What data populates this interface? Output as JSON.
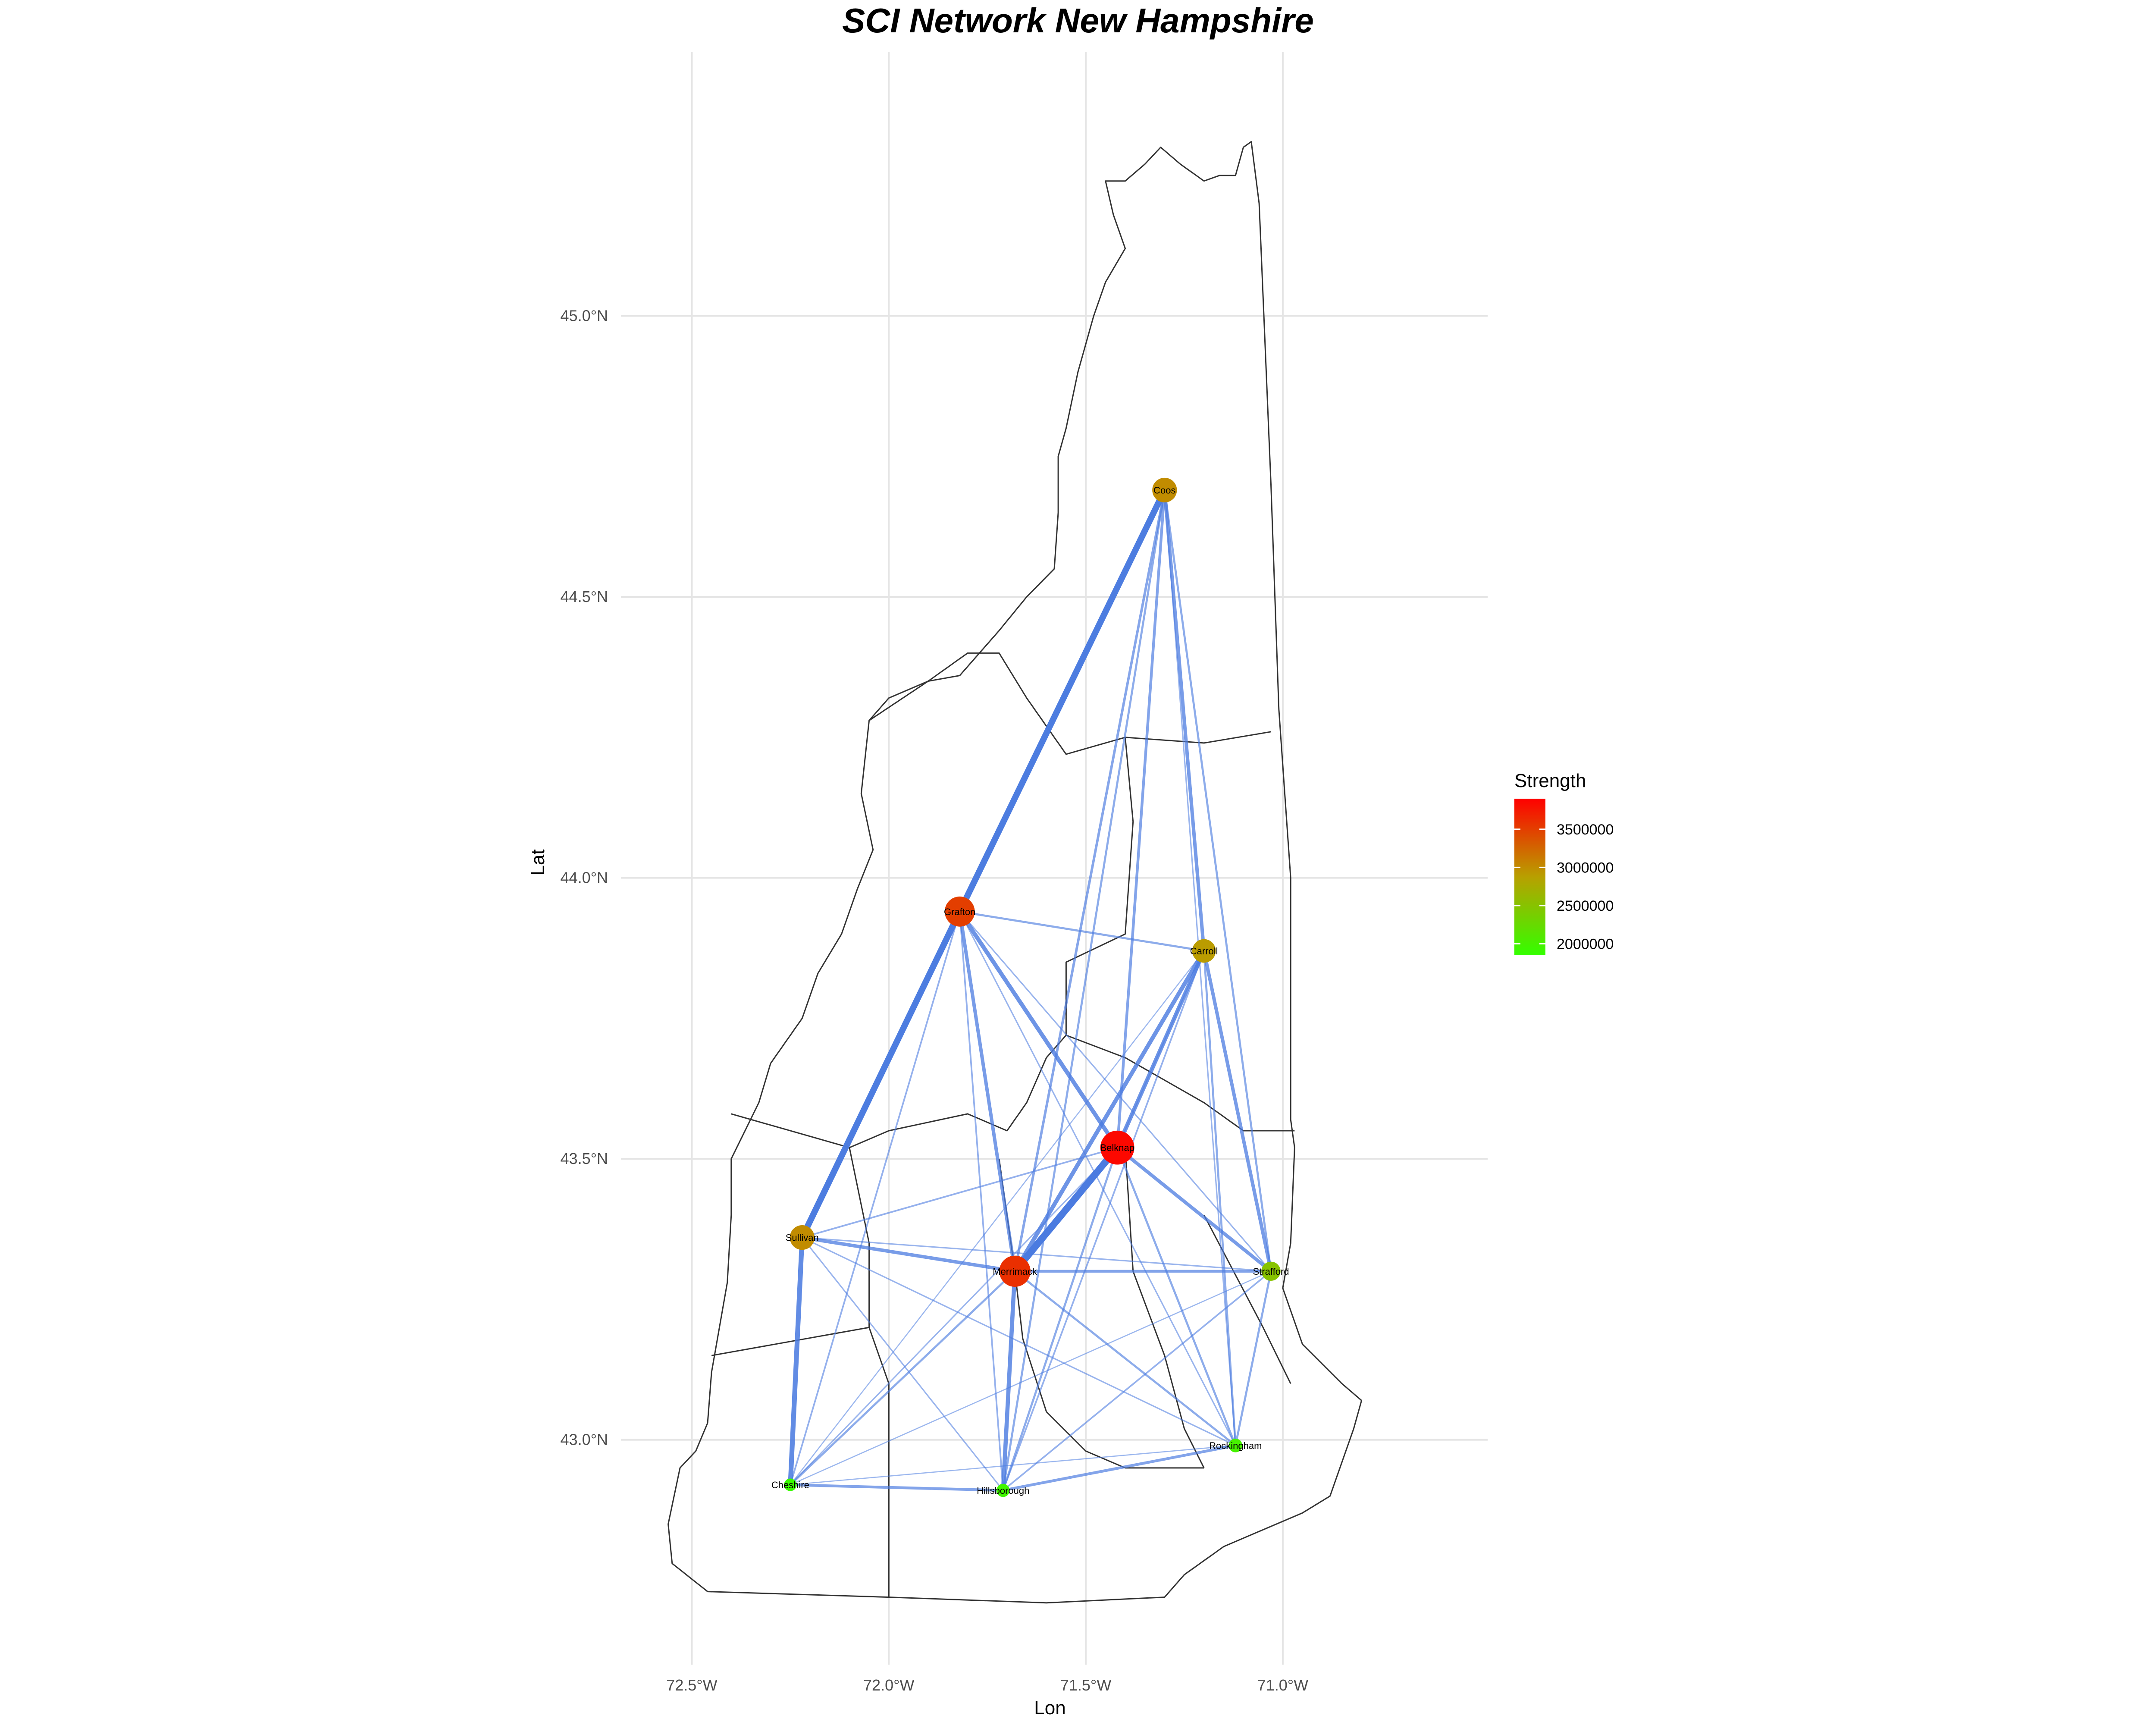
{
  "chart_data": {
    "type": "network-map",
    "title": "SCI Network New Hampshire",
    "xlabel": "Lon",
    "ylabel": "Lat",
    "xlim": [
      -72.68,
      -70.48
    ],
    "ylim": [
      42.6,
      45.47
    ],
    "x_ticks": [
      {
        "value": -72.5,
        "label": "72.5°W"
      },
      {
        "value": -72.0,
        "label": "72.0°W"
      },
      {
        "value": -71.5,
        "label": "71.5°W"
      },
      {
        "value": -71.0,
        "label": "71.0°W"
      }
    ],
    "y_ticks": [
      {
        "value": 43.0,
        "label": "43.0°N"
      },
      {
        "value": 43.5,
        "label": "43.5°N"
      },
      {
        "value": 44.0,
        "label": "44.0°N"
      },
      {
        "value": 44.5,
        "label": "44.5°N"
      },
      {
        "value": 45.0,
        "label": "45.0°N"
      }
    ],
    "grid": true,
    "legend": {
      "title": "Strength",
      "placement": "right",
      "min": 1850000,
      "max": 3900000,
      "colors": {
        "low": "#33ff00",
        "mid": "#b8a000",
        "high": "#ff0000"
      },
      "ticks": [
        {
          "value": 2000000,
          "label": "2000000"
        },
        {
          "value": 2500000,
          "label": "2500000"
        },
        {
          "value": 3000000,
          "label": "3000000"
        },
        {
          "value": 3500000,
          "label": "3500000"
        }
      ]
    },
    "edge_color": "#4b7be0",
    "nodes": [
      {
        "id": "Coos",
        "name": "Coos",
        "lon": -71.3,
        "lat": 44.69,
        "strength": 3000000
      },
      {
        "id": "Grafton",
        "name": "Grafton",
        "lon": -71.82,
        "lat": 43.94,
        "strength": 3500000
      },
      {
        "id": "Carroll",
        "name": "Carroll",
        "lon": -71.2,
        "lat": 43.87,
        "strength": 2900000
      },
      {
        "id": "Belknap",
        "name": "Belknap",
        "lon": -71.42,
        "lat": 43.52,
        "strength": 3850000
      },
      {
        "id": "Sullivan",
        "name": "Sullivan",
        "lon": -72.22,
        "lat": 43.36,
        "strength": 3000000
      },
      {
        "id": "Merrimack",
        "name": "Merrimack",
        "lon": -71.68,
        "lat": 43.3,
        "strength": 3600000
      },
      {
        "id": "Strafford",
        "name": "Strafford",
        "lon": -71.03,
        "lat": 43.3,
        "strength": 2500000
      },
      {
        "id": "Rockingham",
        "name": "Rockingham",
        "lon": -71.12,
        "lat": 42.99,
        "strength": 2000000
      },
      {
        "id": "Cheshire",
        "name": "Cheshire",
        "lon": -72.25,
        "lat": 42.92,
        "strength": 1900000
      },
      {
        "id": "Hillsborough",
        "name": "Hillsborough",
        "lon": -71.71,
        "lat": 42.91,
        "strength": 1950000
      }
    ],
    "edges": [
      {
        "source": "Coos",
        "target": "Grafton",
        "weight": 4.5
      },
      {
        "source": "Grafton",
        "target": "Sullivan",
        "weight": 4.5
      },
      {
        "source": "Belknap",
        "target": "Merrimack",
        "weight": 5
      },
      {
        "source": "Sullivan",
        "target": "Cheshire",
        "weight": 3.5
      },
      {
        "source": "Carroll",
        "target": "Merrimack",
        "weight": 3
      },
      {
        "source": "Grafton",
        "target": "Belknap",
        "weight": 3
      },
      {
        "source": "Coos",
        "target": "Carroll",
        "weight": 2.5
      },
      {
        "source": "Carroll",
        "target": "Belknap",
        "weight": 3
      },
      {
        "source": "Belknap",
        "target": "Strafford",
        "weight": 2.5
      },
      {
        "source": "Carroll",
        "target": "Strafford",
        "weight": 2.5
      },
      {
        "source": "Merrimack",
        "target": "Hillsborough",
        "weight": 3
      },
      {
        "source": "Grafton",
        "target": "Merrimack",
        "weight": 2.5
      },
      {
        "source": "Sullivan",
        "target": "Merrimack",
        "weight": 2.5
      },
      {
        "source": "Coos",
        "target": "Belknap",
        "weight": 2
      },
      {
        "source": "Coos",
        "target": "Merrimack",
        "weight": 1.8
      },
      {
        "source": "Coos",
        "target": "Strafford",
        "weight": 1.5
      },
      {
        "source": "Coos",
        "target": "Hillsborough",
        "weight": 1.5
      },
      {
        "source": "Coos",
        "target": "Sullivan",
        "weight": 1
      },
      {
        "source": "Coos",
        "target": "Rockingham",
        "weight": 1
      },
      {
        "source": "Grafton",
        "target": "Carroll",
        "weight": 1.5
      },
      {
        "source": "Grafton",
        "target": "Hillsborough",
        "weight": 1.2
      },
      {
        "source": "Grafton",
        "target": "Cheshire",
        "weight": 1.2
      },
      {
        "source": "Grafton",
        "target": "Strafford",
        "weight": 1
      },
      {
        "source": "Grafton",
        "target": "Rockingham",
        "weight": 1
      },
      {
        "source": "Merrimack",
        "target": "Strafford",
        "weight": 2
      },
      {
        "source": "Merrimack",
        "target": "Rockingham",
        "weight": 1.5
      },
      {
        "source": "Merrimack",
        "target": "Cheshire",
        "weight": 1.5
      },
      {
        "source": "Sullivan",
        "target": "Belknap",
        "weight": 1.2
      },
      {
        "source": "Sullivan",
        "target": "Strafford",
        "weight": 1
      },
      {
        "source": "Sullivan",
        "target": "Hillsborough",
        "weight": 1
      },
      {
        "source": "Sullivan",
        "target": "Rockingham",
        "weight": 1
      },
      {
        "source": "Cheshire",
        "target": "Hillsborough",
        "weight": 2
      },
      {
        "source": "Cheshire",
        "target": "Belknap",
        "weight": 1
      },
      {
        "source": "Cheshire",
        "target": "Carroll",
        "weight": 0.8
      },
      {
        "source": "Cheshire",
        "target": "Strafford",
        "weight": 0.8
      },
      {
        "source": "Cheshire",
        "target": "Rockingham",
        "weight": 0.8
      },
      {
        "source": "Hillsborough",
        "target": "Rockingham",
        "weight": 2
      },
      {
        "source": "Hillsborough",
        "target": "Belknap",
        "weight": 1.5
      },
      {
        "source": "Hillsborough",
        "target": "Carroll",
        "weight": 1.2
      },
      {
        "source": "Hillsborough",
        "target": "Strafford",
        "weight": 1.2
      },
      {
        "source": "Rockingham",
        "target": "Strafford",
        "weight": 1.5
      },
      {
        "source": "Rockingham",
        "target": "Belknap",
        "weight": 1.5
      },
      {
        "source": "Rockingham",
        "target": "Carroll",
        "weight": 1.5
      },
      {
        "source": "Belknap",
        "target": "Carroll",
        "weight": 0.8
      }
    ],
    "state_outline": [
      [
        -71.08,
        45.31
      ],
      [
        -71.1,
        45.3
      ],
      [
        -71.12,
        45.25
      ],
      [
        -71.16,
        45.25
      ],
      [
        -71.2,
        45.24
      ],
      [
        -71.26,
        45.27
      ],
      [
        -71.31,
        45.3
      ],
      [
        -71.35,
        45.27
      ],
      [
        -71.4,
        45.24
      ],
      [
        -71.45,
        45.24
      ],
      [
        -71.43,
        45.18
      ],
      [
        -71.4,
        45.12
      ],
      [
        -71.45,
        45.06
      ],
      [
        -71.48,
        45.0
      ],
      [
        -71.5,
        44.95
      ],
      [
        -71.52,
        44.9
      ],
      [
        -71.55,
        44.8
      ],
      [
        -71.57,
        44.75
      ],
      [
        -71.57,
        44.65
      ],
      [
        -71.58,
        44.55
      ],
      [
        -71.65,
        44.5
      ],
      [
        -71.72,
        44.44
      ],
      [
        -71.82,
        44.36
      ],
      [
        -71.9,
        44.35
      ],
      [
        -72.0,
        44.32
      ],
      [
        -72.05,
        44.28
      ],
      [
        -72.07,
        44.15
      ],
      [
        -72.04,
        44.05
      ],
      [
        -72.08,
        43.98
      ],
      [
        -72.12,
        43.9
      ],
      [
        -72.18,
        43.83
      ],
      [
        -72.22,
        43.75
      ],
      [
        -72.3,
        43.67
      ],
      [
        -72.33,
        43.6
      ],
      [
        -72.4,
        43.5
      ],
      [
        -72.4,
        43.4
      ],
      [
        -72.41,
        43.28
      ],
      [
        -72.43,
        43.2
      ],
      [
        -72.45,
        43.12
      ],
      [
        -72.46,
        43.03
      ],
      [
        -72.49,
        42.98
      ],
      [
        -72.53,
        42.95
      ],
      [
        -72.56,
        42.85
      ],
      [
        -72.55,
        42.78
      ],
      [
        -72.46,
        42.73
      ],
      [
        -72.0,
        42.72
      ],
      [
        -71.6,
        42.71
      ],
      [
        -71.3,
        42.72
      ],
      [
        -71.25,
        42.76
      ],
      [
        -71.15,
        42.81
      ],
      [
        -71.05,
        42.84
      ],
      [
        -70.95,
        42.87
      ],
      [
        -70.88,
        42.9
      ],
      [
        -70.82,
        43.02
      ],
      [
        -70.8,
        43.07
      ],
      [
        -70.85,
        43.1
      ],
      [
        -70.95,
        43.17
      ],
      [
        -71.0,
        43.27
      ],
      [
        -70.98,
        43.35
      ],
      [
        -70.97,
        43.52
      ],
      [
        -70.98,
        43.57
      ],
      [
        -70.98,
        44.0
      ],
      [
        -71.0,
        44.2
      ],
      [
        -71.01,
        44.3
      ],
      [
        -71.03,
        44.7
      ],
      [
        -71.06,
        45.2
      ],
      [
        -71.08,
        45.31
      ]
    ],
    "county_lines": [
      [
        [
          -72.05,
          44.28
        ],
        [
          -71.9,
          44.35
        ],
        [
          -71.8,
          44.4
        ],
        [
          -71.72,
          44.4
        ],
        [
          -71.65,
          44.32
        ],
        [
          -71.55,
          44.22
        ],
        [
          -71.4,
          44.25
        ]
      ],
      [
        [
          -71.4,
          44.25
        ],
        [
          -71.2,
          44.24
        ],
        [
          -71.03,
          44.26
        ]
      ],
      [
        [
          -71.4,
          44.25
        ],
        [
          -71.38,
          44.1
        ],
        [
          -71.4,
          43.9
        ],
        [
          -71.55,
          43.85
        ],
        [
          -71.55,
          43.72
        ]
      ],
      [
        [
          -71.55,
          43.72
        ],
        [
          -71.6,
          43.68
        ],
        [
          -71.65,
          43.6
        ],
        [
          -71.7,
          43.55
        ],
        [
          -71.8,
          43.58
        ],
        [
          -72.0,
          43.55
        ],
        [
          -72.1,
          43.52
        ],
        [
          -72.4,
          43.58
        ]
      ],
      [
        [
          -71.55,
          43.72
        ],
        [
          -71.4,
          43.68
        ],
        [
          -71.2,
          43.6
        ],
        [
          -71.1,
          43.55
        ],
        [
          -70.97,
          43.55
        ]
      ],
      [
        [
          -71.72,
          43.5
        ],
        [
          -71.7,
          43.4
        ],
        [
          -71.68,
          43.3
        ],
        [
          -71.66,
          43.18
        ],
        [
          -71.6,
          43.05
        ],
        [
          -71.5,
          42.98
        ],
        [
          -71.4,
          42.95
        ],
        [
          -71.2,
          42.95
        ]
      ],
      [
        [
          -72.1,
          43.52
        ],
        [
          -72.05,
          43.35
        ],
        [
          -72.05,
          43.2
        ],
        [
          -72.45,
          43.15
        ]
      ],
      [
        [
          -72.05,
          43.2
        ],
        [
          -72.0,
          43.1
        ],
        [
          -72.0,
          42.72
        ]
      ],
      [
        [
          -71.4,
          43.52
        ],
        [
          -71.38,
          43.3
        ],
        [
          -71.3,
          43.15
        ],
        [
          -71.25,
          43.02
        ],
        [
          -71.2,
          42.95
        ]
      ],
      [
        [
          -71.2,
          43.4
        ],
        [
          -71.05,
          43.2
        ],
        [
          -70.98,
          43.1
        ]
      ]
    ]
  }
}
